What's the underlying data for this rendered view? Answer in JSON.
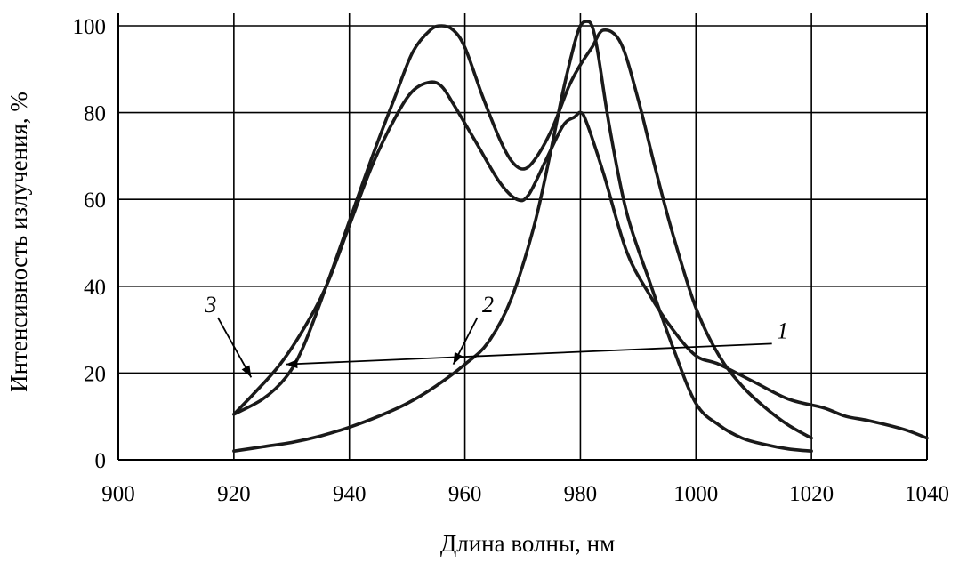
{
  "chart_data": {
    "type": "line",
    "xlabel": "Длина волны, нм",
    "ylabel": "Интенсивность излучения, %",
    "xlim": [
      900,
      1040
    ],
    "ylim": [
      0,
      100
    ],
    "x_ticks": [
      900,
      920,
      940,
      960,
      980,
      1000,
      1020,
      1040
    ],
    "y_ticks": [
      0,
      20,
      40,
      60,
      80,
      100
    ],
    "grid": true,
    "series": [
      {
        "name": "1",
        "x": [
          920,
          925,
          929,
          932,
          936,
          940,
          944,
          948,
          951,
          954,
          956,
          958,
          960,
          963,
          966,
          968,
          970,
          972,
          975,
          978,
          980,
          982,
          984,
          987,
          990,
          993,
          996,
          1000,
          1004,
          1008,
          1012,
          1016,
          1020
        ],
        "y": [
          10.5,
          14,
          19,
          26,
          40,
          55,
          70,
          84,
          94,
          99,
          100,
          99,
          95,
          84,
          74,
          69,
          67,
          69,
          76,
          86,
          91,
          95,
          99,
          96,
          83,
          67,
          52,
          35,
          24,
          17,
          12,
          8,
          5
        ]
      },
      {
        "name": "2",
        "x": [
          920,
          925,
          930,
          935,
          940,
          945,
          950,
          955,
          960,
          964,
          968,
          972,
          975,
          977,
          979,
          980,
          981,
          982,
          983,
          985,
          988,
          992,
          996,
          1000,
          1004,
          1008,
          1012,
          1016,
          1020
        ],
        "y": [
          2,
          3,
          4,
          5.5,
          7.5,
          10,
          13,
          17,
          22,
          27,
          37,
          54,
          72,
          85,
          96,
          100,
          101,
          100,
          94,
          77,
          57,
          41,
          26,
          13,
          8,
          5,
          3.5,
          2.5,
          2
        ]
      },
      {
        "name": "3",
        "x": [
          920,
          924,
          928,
          932,
          936,
          940,
          944,
          948,
          951,
          954,
          956,
          958,
          962,
          966,
          969,
          971,
          974,
          977,
          979,
          980,
          981,
          984,
          988,
          992,
          996,
          1000,
          1004,
          1010,
          1016,
          1022,
          1026,
          1030,
          1036,
          1040
        ],
        "y": [
          10.5,
          16,
          22,
          30,
          40,
          54,
          68,
          79,
          85,
          87,
          86,
          82,
          73,
          64,
          60,
          61,
          69,
          77,
          79,
          80,
          78,
          66,
          48,
          38,
          30,
          24,
          22,
          18,
          14,
          12,
          10,
          9,
          7,
          5
        ]
      }
    ],
    "annotations": [
      {
        "label": "1",
        "text_x": 1015,
        "text_y": 28,
        "arrow_to_x": 929,
        "arrow_to_y": 22
      },
      {
        "label": "2",
        "text_x": 964,
        "text_y": 34,
        "arrow_to_x": 958,
        "arrow_to_y": 22
      },
      {
        "label": "3",
        "text_x": 916,
        "text_y": 34,
        "arrow_to_x": 923,
        "arrow_to_y": 19
      }
    ]
  }
}
